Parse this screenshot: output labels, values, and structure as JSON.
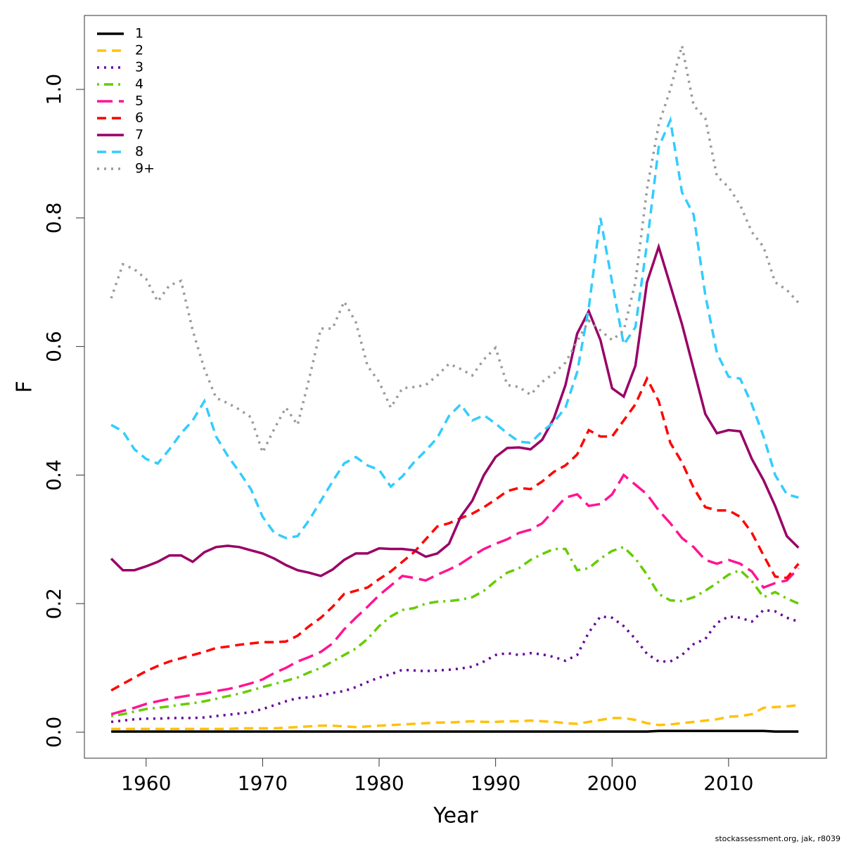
{
  "chart_data": {
    "type": "line",
    "xlabel": "Year",
    "ylabel": "F",
    "footnote": "stockassessment.org, jak, r8039",
    "x": [
      1957,
      1958,
      1959,
      1960,
      1961,
      1962,
      1963,
      1964,
      1965,
      1966,
      1967,
      1968,
      1969,
      1970,
      1971,
      1972,
      1973,
      1974,
      1975,
      1976,
      1977,
      1978,
      1979,
      1980,
      1981,
      1982,
      1983,
      1984,
      1985,
      1986,
      1987,
      1988,
      1989,
      1990,
      1991,
      1992,
      1993,
      1994,
      1995,
      1996,
      1997,
      1998,
      1999,
      2000,
      2001,
      2002,
      2003,
      2004,
      2005,
      2006,
      2007,
      2008,
      2009,
      2010,
      2011,
      2012,
      2013,
      2014,
      2015,
      2016
    ],
    "xlim": [
      1954.7,
      2018.4
    ],
    "xticks": [
      1960,
      1970,
      1980,
      1990,
      2000,
      2010
    ],
    "ylim": [
      -0.0405,
      1.115
    ],
    "yticks": [
      {
        "value": 0,
        "label": "0.0"
      },
      0.2,
      0.4,
      0.6,
      0.8,
      {
        "value": 1,
        "label": "1.0"
      }
    ],
    "grid": false,
    "legend": "top-left",
    "series": [
      {
        "name": "1",
        "color": "#000000",
        "dash": "solid",
        "values": [
          0.001,
          0.001,
          0.001,
          0.001,
          0.001,
          0.001,
          0.001,
          0.001,
          0.001,
          0.001,
          0.001,
          0.001,
          0.001,
          0.001,
          0.001,
          0.001,
          0.001,
          0.001,
          0.001,
          0.001,
          0.001,
          0.001,
          0.001,
          0.001,
          0.001,
          0.001,
          0.001,
          0.001,
          0.001,
          0.001,
          0.001,
          0.001,
          0.001,
          0.001,
          0.001,
          0.001,
          0.001,
          0.001,
          0.001,
          0.001,
          0.001,
          0.001,
          0.001,
          0.001,
          0.001,
          0.001,
          0.001,
          0.002,
          0.002,
          0.002,
          0.002,
          0.002,
          0.002,
          0.002,
          0.002,
          0.002,
          0.002,
          0.001,
          0.001,
          0.001
        ]
      },
      {
        "name": "2",
        "color": "#ffc20a",
        "dash": "dashed",
        "values": [
          0.005,
          0.005,
          0.005,
          0.005,
          0.005,
          0.005,
          0.005,
          0.005,
          0.005,
          0.005,
          0.005,
          0.006,
          0.006,
          0.006,
          0.006,
          0.007,
          0.008,
          0.009,
          0.01,
          0.01,
          0.009,
          0.008,
          0.009,
          0.01,
          0.011,
          0.012,
          0.013,
          0.014,
          0.015,
          0.015,
          0.016,
          0.017,
          0.016,
          0.016,
          0.017,
          0.017,
          0.018,
          0.017,
          0.016,
          0.014,
          0.013,
          0.016,
          0.019,
          0.022,
          0.022,
          0.019,
          0.014,
          0.011,
          0.012,
          0.014,
          0.016,
          0.018,
          0.02,
          0.024,
          0.025,
          0.028,
          0.038,
          0.039,
          0.04,
          0.042
        ]
      },
      {
        "name": "3",
        "color": "#660099",
        "dash": "dotted",
        "values": [
          0.016,
          0.018,
          0.02,
          0.021,
          0.021,
          0.022,
          0.022,
          0.022,
          0.023,
          0.025,
          0.027,
          0.029,
          0.031,
          0.036,
          0.042,
          0.048,
          0.053,
          0.054,
          0.057,
          0.061,
          0.064,
          0.07,
          0.078,
          0.085,
          0.09,
          0.097,
          0.096,
          0.095,
          0.096,
          0.097,
          0.099,
          0.102,
          0.11,
          0.12,
          0.123,
          0.12,
          0.123,
          0.121,
          0.117,
          0.111,
          0.12,
          0.155,
          0.18,
          0.178,
          0.165,
          0.145,
          0.122,
          0.11,
          0.11,
          0.12,
          0.137,
          0.145,
          0.17,
          0.18,
          0.178,
          0.172,
          0.19,
          0.188,
          0.178,
          0.172
        ]
      },
      {
        "name": "4",
        "color": "#66cc00",
        "dash": "dotdash",
        "values": [
          0.025,
          0.028,
          0.032,
          0.036,
          0.038,
          0.04,
          0.043,
          0.045,
          0.048,
          0.052,
          0.056,
          0.06,
          0.065,
          0.07,
          0.075,
          0.08,
          0.085,
          0.093,
          0.1,
          0.11,
          0.12,
          0.13,
          0.145,
          0.165,
          0.18,
          0.19,
          0.193,
          0.2,
          0.203,
          0.204,
          0.206,
          0.21,
          0.22,
          0.235,
          0.248,
          0.255,
          0.268,
          0.277,
          0.285,
          0.285,
          0.252,
          0.255,
          0.27,
          0.282,
          0.288,
          0.27,
          0.245,
          0.215,
          0.205,
          0.204,
          0.21,
          0.22,
          0.232,
          0.245,
          0.252,
          0.235,
          0.21,
          0.218,
          0.208,
          0.2
        ]
      },
      {
        "name": "5",
        "color": "#ff1493",
        "dash": "longdash",
        "values": [
          0.028,
          0.033,
          0.038,
          0.044,
          0.048,
          0.052,
          0.055,
          0.058,
          0.06,
          0.064,
          0.067,
          0.071,
          0.076,
          0.082,
          0.092,
          0.1,
          0.11,
          0.117,
          0.125,
          0.138,
          0.16,
          0.178,
          0.195,
          0.213,
          0.228,
          0.243,
          0.24,
          0.236,
          0.245,
          0.253,
          0.262,
          0.274,
          0.285,
          0.293,
          0.3,
          0.31,
          0.315,
          0.325,
          0.345,
          0.365,
          0.37,
          0.352,
          0.355,
          0.37,
          0.4,
          0.385,
          0.37,
          0.345,
          0.325,
          0.302,
          0.288,
          0.268,
          0.262,
          0.268,
          0.262,
          0.25,
          0.225,
          0.232,
          0.236,
          0.255
        ]
      },
      {
        "name": "6",
        "color": "#ff0000",
        "dash": "dashed",
        "values": [
          0.065,
          0.075,
          0.085,
          0.095,
          0.103,
          0.11,
          0.115,
          0.12,
          0.125,
          0.131,
          0.133,
          0.136,
          0.138,
          0.14,
          0.14,
          0.141,
          0.15,
          0.165,
          0.178,
          0.195,
          0.215,
          0.22,
          0.225,
          0.238,
          0.25,
          0.265,
          0.28,
          0.3,
          0.32,
          0.325,
          0.333,
          0.34,
          0.35,
          0.362,
          0.375,
          0.38,
          0.378,
          0.39,
          0.405,
          0.415,
          0.432,
          0.47,
          0.46,
          0.46,
          0.485,
          0.51,
          0.55,
          0.515,
          0.45,
          0.42,
          0.38,
          0.35,
          0.345,
          0.345,
          0.335,
          0.31,
          0.275,
          0.242,
          0.24,
          0.262
        ]
      },
      {
        "name": "7",
        "color": "#990066",
        "dash": "solid",
        "values": [
          0.27,
          0.252,
          0.252,
          0.258,
          0.265,
          0.275,
          0.275,
          0.265,
          0.28,
          0.288,
          0.29,
          0.288,
          0.283,
          0.278,
          0.27,
          0.26,
          0.252,
          0.248,
          0.243,
          0.253,
          0.268,
          0.278,
          0.278,
          0.286,
          0.285,
          0.285,
          0.283,
          0.273,
          0.278,
          0.293,
          0.335,
          0.36,
          0.4,
          0.428,
          0.442,
          0.443,
          0.44,
          0.455,
          0.488,
          0.54,
          0.62,
          0.655,
          0.61,
          0.535,
          0.522,
          0.57,
          0.7,
          0.755,
          0.695,
          0.635,
          0.565,
          0.495,
          0.465,
          0.47,
          0.468,
          0.425,
          0.392,
          0.352,
          0.305,
          0.287
        ]
      },
      {
        "name": "8",
        "color": "#33ccff",
        "dash": "dashed",
        "values": [
          0.478,
          0.468,
          0.44,
          0.425,
          0.418,
          0.44,
          0.465,
          0.485,
          0.515,
          0.46,
          0.43,
          0.405,
          0.378,
          0.335,
          0.31,
          0.302,
          0.305,
          0.33,
          0.36,
          0.39,
          0.418,
          0.428,
          0.415,
          0.408,
          0.382,
          0.398,
          0.42,
          0.438,
          0.458,
          0.492,
          0.51,
          0.485,
          0.493,
          0.48,
          0.465,
          0.452,
          0.45,
          0.468,
          0.482,
          0.505,
          0.56,
          0.66,
          0.8,
          0.7,
          0.603,
          0.63,
          0.76,
          0.91,
          0.952,
          0.84,
          0.805,
          0.68,
          0.59,
          0.553,
          0.55,
          0.51,
          0.46,
          0.4,
          0.37,
          0.365
        ]
      },
      {
        "name": "9+",
        "color": "#999999",
        "dash": "dotted",
        "values": [
          0.675,
          0.728,
          0.72,
          0.705,
          0.67,
          0.695,
          0.702,
          0.625,
          0.565,
          0.52,
          0.512,
          0.502,
          0.49,
          0.435,
          0.472,
          0.505,
          0.478,
          0.55,
          0.628,
          0.628,
          0.67,
          0.638,
          0.57,
          0.545,
          0.505,
          0.535,
          0.537,
          0.54,
          0.555,
          0.573,
          0.565,
          0.555,
          0.58,
          0.598,
          0.54,
          0.537,
          0.525,
          0.545,
          0.558,
          0.575,
          0.608,
          0.64,
          0.625,
          0.61,
          0.625,
          0.7,
          0.845,
          0.945,
          1.0,
          1.068,
          0.975,
          0.955,
          0.865,
          0.848,
          0.82,
          0.778,
          0.755,
          0.7,
          0.688,
          0.668
        ]
      }
    ]
  }
}
